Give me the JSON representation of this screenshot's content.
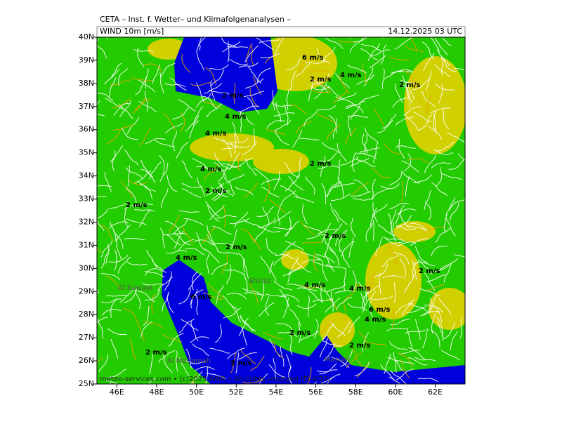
{
  "header": {
    "title": "CETA – Inst. f. Wetter– und Klimafolgenanalysen –",
    "field": "WIND 10m [m/s]",
    "time": "14.12.2025 03 UTC"
  },
  "map": {
    "lon_range": [
      45,
      63.5
    ],
    "lat_range": [
      25,
      40
    ],
    "lon_ticks": [
      {
        "value": 46,
        "label": "46E"
      },
      {
        "value": 48,
        "label": "48E"
      },
      {
        "value": 50,
        "label": "50E"
      },
      {
        "value": 52,
        "label": "52E"
      },
      {
        "value": 54,
        "label": "54E"
      },
      {
        "value": 56,
        "label": "56E"
      },
      {
        "value": 58,
        "label": "58E"
      },
      {
        "value": 60,
        "label": "60E"
      },
      {
        "value": 62,
        "label": "62E"
      }
    ],
    "lat_ticks": [
      {
        "value": 25,
        "label": "25N"
      },
      {
        "value": 26,
        "label": "26N"
      },
      {
        "value": 27,
        "label": "27N"
      },
      {
        "value": 28,
        "label": "28N"
      },
      {
        "value": 29,
        "label": "29N"
      },
      {
        "value": 30,
        "label": "30N"
      },
      {
        "value": 31,
        "label": "31N"
      },
      {
        "value": 32,
        "label": "32N"
      },
      {
        "value": 33,
        "label": "33N"
      },
      {
        "value": 34,
        "label": "34N"
      },
      {
        "value": 35,
        "label": "35N"
      },
      {
        "value": 36,
        "label": "36N"
      },
      {
        "value": 37,
        "label": "37N"
      },
      {
        "value": 38,
        "label": "38N"
      },
      {
        "value": 39,
        "label": "39N"
      },
      {
        "value": 40,
        "label": "40N"
      }
    ]
  },
  "contour_labels": [
    "6 m/s",
    "2 m/s",
    "4 m/s",
    "2 m/s",
    "2 m/s",
    "4 m/s",
    "4 m/s",
    "2 m/s",
    "4 m/s",
    "2 m/s",
    "2 m/s",
    "2 m/s",
    "2 m/s",
    "4 m/s",
    "2 m/s",
    "4 m/s",
    "4 m/s",
    "6 m/s",
    "6 m/s",
    "4 m/s",
    "2 m/s",
    "2 m/s",
    "2 m/s",
    "2 m/s"
  ],
  "cities": [
    "Al Kuwayt",
    "Shiraz",
    "Al Manamah",
    "Masqat"
  ],
  "footer": "meteo-services.com • (c)2025 WKR • All rights reserved (EI-4/15)"
}
